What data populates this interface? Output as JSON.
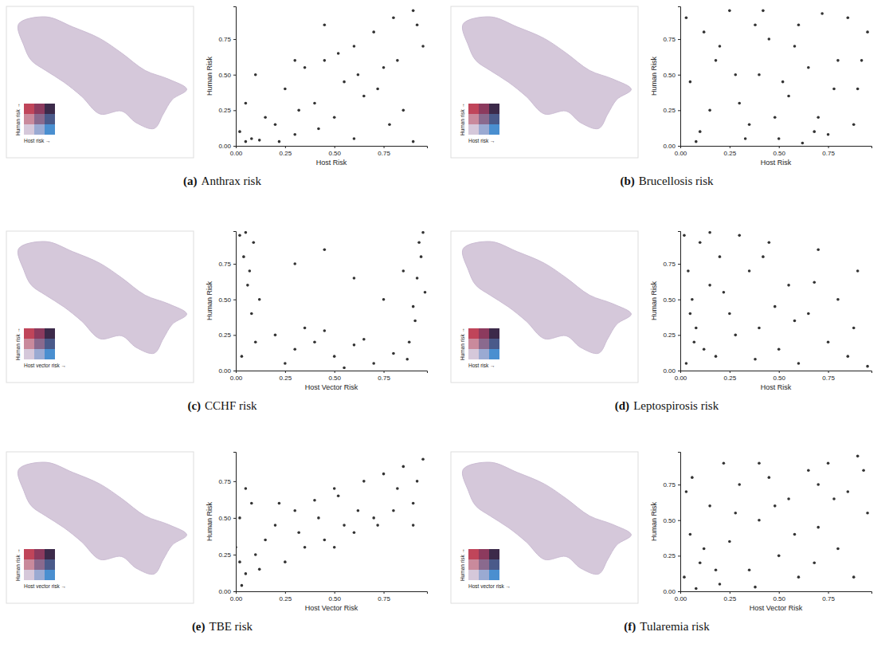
{
  "chart_data": [
    {
      "type": "scatter",
      "label": "(a)",
      "title": "Anthrax risk",
      "x_label": "Host Risk",
      "y_label": "Human Risk",
      "color": "#333333",
      "marker": "circle",
      "map_legend": {
        "x_label": "Host risk →",
        "y_label": "Human risk →",
        "colors": [
          [
            "#c0455a",
            "#8c3a5e",
            "#3c2a4a"
          ],
          [
            "#c98a9c",
            "#8a6a8e",
            "#4a5a8a"
          ],
          [
            "#d5c8da",
            "#9aaad2",
            "#4a8fd0"
          ]
        ]
      },
      "xlim": [
        0,
        0.97
      ],
      "ylim": [
        0,
        0.98
      ],
      "xticks": [
        {
          "value": 0,
          "label": "0.00"
        },
        {
          "value": 0.25,
          "label": "0.25"
        },
        {
          "value": 0.5,
          "label": "0.50"
        },
        {
          "value": 0.75,
          "label": "0.75"
        }
      ],
      "yticks": [
        {
          "value": 0,
          "label": "0.00"
        },
        {
          "value": 0.25,
          "label": "0.25"
        },
        {
          "value": 0.5,
          "label": "0.50"
        },
        {
          "value": 0.75,
          "label": "0.75"
        }
      ],
      "x": [
        0.02,
        0.05,
        0.08,
        0.1,
        0.15,
        0.2,
        0.25,
        0.3,
        0.35,
        0.4,
        0.45,
        0.5,
        0.55,
        0.6,
        0.65,
        0.7,
        0.75,
        0.8,
        0.85,
        0.9,
        0.95,
        0.12,
        0.22,
        0.32,
        0.42,
        0.52,
        0.62,
        0.72,
        0.82,
        0.92,
        0.05,
        0.3,
        0.6,
        0.9,
        0.45,
        0.78
      ],
      "values": [
        0.1,
        0.3,
        0.05,
        0.5,
        0.2,
        0.15,
        0.4,
        0.08,
        0.55,
        0.3,
        0.6,
        0.2,
        0.45,
        0.7,
        0.35,
        0.8,
        0.55,
        0.9,
        0.25,
        0.95,
        0.7,
        0.04,
        0.03,
        0.25,
        0.12,
        0.65,
        0.5,
        0.4,
        0.6,
        0.85,
        0.03,
        0.6,
        0.05,
        0.03,
        0.85,
        0.15
      ]
    },
    {
      "type": "scatter",
      "label": "(b)",
      "title": "Brucellosis risk",
      "x_label": "Host Risk",
      "y_label": "Human Risk",
      "color": "#333333",
      "marker": "circle",
      "map_legend": {
        "x_label": "Host risk →",
        "y_label": "Human risk →",
        "colors": [
          [
            "#c0455a",
            "#8c3a5e",
            "#3c2a4a"
          ],
          [
            "#c98a9c",
            "#8a6a8e",
            "#4a5a8a"
          ],
          [
            "#d5c8da",
            "#9aaad2",
            "#4a8fd0"
          ]
        ]
      },
      "xlim": [
        0,
        0.97
      ],
      "ylim": [
        0,
        0.98
      ],
      "xticks": [
        {
          "value": 0,
          "label": "0.00"
        },
        {
          "value": 0.25,
          "label": "0.25"
        },
        {
          "value": 0.5,
          "label": "0.50"
        },
        {
          "value": 0.75,
          "label": "0.75"
        }
      ],
      "yticks": [
        {
          "value": 0,
          "label": "0.00"
        },
        {
          "value": 0.25,
          "label": "0.25"
        },
        {
          "value": 0.5,
          "label": "0.50"
        },
        {
          "value": 0.75,
          "label": "0.75"
        }
      ],
      "x": [
        0.03,
        0.1,
        0.2,
        0.3,
        0.4,
        0.5,
        0.6,
        0.7,
        0.8,
        0.9,
        0.95,
        0.05,
        0.15,
        0.25,
        0.35,
        0.45,
        0.55,
        0.65,
        0.75,
        0.85,
        0.08,
        0.18,
        0.28,
        0.38,
        0.48,
        0.58,
        0.68,
        0.78,
        0.88,
        0.12,
        0.42,
        0.62,
        0.92,
        0.33,
        0.72,
        0.52
      ],
      "values": [
        0.9,
        0.1,
        0.7,
        0.3,
        0.5,
        0.05,
        0.85,
        0.2,
        0.6,
        0.4,
        0.8,
        0.45,
        0.25,
        0.95,
        0.15,
        0.75,
        0.35,
        0.55,
        0.08,
        0.9,
        0.03,
        0.6,
        0.5,
        0.85,
        0.2,
        0.7,
        0.1,
        0.4,
        0.15,
        0.8,
        0.95,
        0.02,
        0.6,
        0.05,
        0.93,
        0.45
      ]
    },
    {
      "type": "scatter",
      "label": "(c)",
      "title": "CCHF risk",
      "x_label": "Host Vector Risk",
      "y_label": "Human Risk",
      "color": "#333333",
      "marker": "circle",
      "map_legend": {
        "x_label": "Host vector risk →",
        "y_label": "Human risk →",
        "colors": [
          [
            "#c0455a",
            "#8c3a5e",
            "#3c2a4a"
          ],
          [
            "#c98a9c",
            "#8a6a8e",
            "#4a5a8a"
          ],
          [
            "#d5c8da",
            "#9aaad2",
            "#4a8fd0"
          ]
        ]
      },
      "xlim": [
        0,
        0.97
      ],
      "ylim": [
        0,
        0.98
      ],
      "xticks": [
        {
          "value": 0,
          "label": "0.00"
        },
        {
          "value": 0.25,
          "label": "0.25"
        },
        {
          "value": 0.5,
          "label": "0.50"
        },
        {
          "value": 0.75,
          "label": "0.75"
        }
      ],
      "yticks": [
        {
          "value": 0,
          "label": "0.00"
        },
        {
          "value": 0.25,
          "label": "0.25"
        },
        {
          "value": 0.5,
          "label": "0.50"
        },
        {
          "value": 0.75,
          "label": "0.75"
        }
      ],
      "x": [
        0.02,
        0.04,
        0.06,
        0.08,
        0.1,
        0.05,
        0.07,
        0.12,
        0.03,
        0.09,
        0.2,
        0.3,
        0.4,
        0.5,
        0.6,
        0.7,
        0.8,
        0.25,
        0.45,
        0.65,
        0.35,
        0.55,
        0.88,
        0.9,
        0.92,
        0.94,
        0.95,
        0.91,
        0.93,
        0.87,
        0.96,
        0.3,
        0.6,
        0.75,
        0.45,
        0.85
      ],
      "values": [
        0.95,
        0.8,
        0.6,
        0.4,
        0.2,
        0.97,
        0.7,
        0.5,
        0.1,
        0.9,
        0.25,
        0.15,
        0.2,
        0.1,
        0.18,
        0.05,
        0.12,
        0.05,
        0.28,
        0.22,
        0.3,
        0.02,
        0.2,
        0.45,
        0.65,
        0.8,
        0.97,
        0.35,
        0.9,
        0.08,
        0.55,
        0.75,
        0.65,
        0.5,
        0.85,
        0.7
      ]
    },
    {
      "type": "scatter",
      "label": "(d)",
      "title": "Leptospirosis risk",
      "x_label": "Host Risk",
      "y_label": "Human Risk",
      "color": "#333333",
      "marker": "circle",
      "map_legend": {
        "x_label": "Host risk →",
        "y_label": "Human risk →",
        "colors": [
          [
            "#c0455a",
            "#8c3a5e",
            "#3c2a4a"
          ],
          [
            "#c98a9c",
            "#8a6a8e",
            "#4a5a8a"
          ],
          [
            "#d5c8da",
            "#9aaad2",
            "#4a8fd0"
          ]
        ]
      },
      "xlim": [
        0,
        0.97
      ],
      "ylim": [
        0,
        0.98
      ],
      "xticks": [
        {
          "value": 0,
          "label": "0.00"
        },
        {
          "value": 0.25,
          "label": "0.25"
        },
        {
          "value": 0.5,
          "label": "0.50"
        },
        {
          "value": 0.75,
          "label": "0.75"
        }
      ],
      "yticks": [
        {
          "value": 0,
          "label": "0.00"
        },
        {
          "value": 0.25,
          "label": "0.25"
        },
        {
          "value": 0.5,
          "label": "0.50"
        },
        {
          "value": 0.75,
          "label": "0.75"
        }
      ],
      "x": [
        0.02,
        0.04,
        0.06,
        0.08,
        0.1,
        0.12,
        0.15,
        0.2,
        0.25,
        0.3,
        0.03,
        0.07,
        0.18,
        0.35,
        0.4,
        0.45,
        0.5,
        0.55,
        0.6,
        0.65,
        0.7,
        0.75,
        0.8,
        0.85,
        0.9,
        0.95,
        0.22,
        0.28,
        0.38,
        0.48,
        0.58,
        0.68,
        0.05,
        0.15,
        0.42,
        0.88
      ],
      "values": [
        0.95,
        0.7,
        0.5,
        0.3,
        0.9,
        0.15,
        0.6,
        0.8,
        0.4,
        0.95,
        0.05,
        0.2,
        0.1,
        0.7,
        0.3,
        0.9,
        0.15,
        0.6,
        0.05,
        0.4,
        0.85,
        0.2,
        0.5,
        0.1,
        0.7,
        0.03,
        0.55,
        0.25,
        0.08,
        0.45,
        0.35,
        0.62,
        0.4,
        0.97,
        0.8,
        0.3
      ]
    },
    {
      "type": "scatter",
      "label": "(e)",
      "title": "TBE risk",
      "x_label": "Host Vector Risk",
      "y_label": "Human Risk",
      "color": "#333333",
      "marker": "circle",
      "map_legend": {
        "x_label": "Host vector risk →",
        "y_label": "Human risk →",
        "colors": [
          [
            "#c0455a",
            "#8c3a5e",
            "#3c2a4a"
          ],
          [
            "#c98a9c",
            "#8a6a8e",
            "#4a5a8a"
          ],
          [
            "#d5c8da",
            "#9aaad2",
            "#4a8fd0"
          ]
        ]
      },
      "xlim": [
        0,
        0.97
      ],
      "ylim": [
        0,
        0.95
      ],
      "xticks": [
        {
          "value": 0,
          "label": "0.00"
        },
        {
          "value": 0.25,
          "label": "0.25"
        },
        {
          "value": 0.5,
          "label": "0.50"
        },
        {
          "value": 0.75,
          "label": "0.75"
        }
      ],
      "yticks": [
        {
          "value": 0,
          "label": "0.00"
        },
        {
          "value": 0.25,
          "label": "0.25"
        },
        {
          "value": 0.5,
          "label": "0.50"
        },
        {
          "value": 0.75,
          "label": "0.75"
        }
      ],
      "x": [
        0.0,
        0.02,
        0.05,
        0.08,
        0.1,
        0.15,
        0.2,
        0.25,
        0.3,
        0.35,
        0.4,
        0.45,
        0.5,
        0.55,
        0.6,
        0.65,
        0.7,
        0.75,
        0.8,
        0.85,
        0.9,
        0.95,
        0.03,
        0.12,
        0.22,
        0.32,
        0.42,
        0.52,
        0.62,
        0.72,
        0.82,
        0.92,
        0.05,
        0.5,
        0.9,
        0.02
      ],
      "values": [
        0.3,
        0.5,
        0.12,
        0.6,
        0.25,
        0.35,
        0.45,
        0.2,
        0.55,
        0.3,
        0.62,
        0.35,
        0.7,
        0.45,
        0.4,
        0.75,
        0.5,
        0.8,
        0.55,
        0.85,
        0.6,
        0.9,
        0.04,
        0.15,
        0.6,
        0.4,
        0.5,
        0.65,
        0.55,
        0.45,
        0.7,
        0.75,
        0.7,
        0.3,
        0.45,
        0.2
      ]
    },
    {
      "type": "scatter",
      "label": "(f)",
      "title": "Tularemia risk",
      "x_label": "Host Vector Risk",
      "y_label": "Human Risk",
      "color": "#333333",
      "marker": "circle",
      "map_legend": {
        "x_label": "Host vector risk →",
        "y_label": "Human risk →",
        "colors": [
          [
            "#c0455a",
            "#8c3a5e",
            "#3c2a4a"
          ],
          [
            "#c98a9c",
            "#8a6a8e",
            "#4a5a8a"
          ],
          [
            "#d5c8da",
            "#9aaad2",
            "#4a8fd0"
          ]
        ]
      },
      "xlim": [
        0,
        0.97
      ],
      "ylim": [
        0,
        0.98
      ],
      "xticks": [
        {
          "value": 0,
          "label": "0.00"
        },
        {
          "value": 0.25,
          "label": "0.25"
        },
        {
          "value": 0.5,
          "label": "0.50"
        },
        {
          "value": 0.75,
          "label": "0.75"
        }
      ],
      "yticks": [
        {
          "value": 0,
          "label": "0.00"
        },
        {
          "value": 0.25,
          "label": "0.25"
        },
        {
          "value": 0.5,
          "label": "0.50"
        },
        {
          "value": 0.75,
          "label": "0.75"
        }
      ],
      "x": [
        0.02,
        0.05,
        0.1,
        0.15,
        0.2,
        0.25,
        0.3,
        0.35,
        0.4,
        0.45,
        0.5,
        0.55,
        0.6,
        0.65,
        0.7,
        0.75,
        0.8,
        0.85,
        0.9,
        0.95,
        0.03,
        0.08,
        0.12,
        0.18,
        0.28,
        0.38,
        0.48,
        0.58,
        0.68,
        0.78,
        0.88,
        0.93,
        0.06,
        0.4,
        0.7,
        0.22
      ],
      "values": [
        0.1,
        0.4,
        0.2,
        0.6,
        0.05,
        0.35,
        0.75,
        0.15,
        0.5,
        0.8,
        0.25,
        0.65,
        0.1,
        0.85,
        0.45,
        0.9,
        0.3,
        0.7,
        0.95,
        0.55,
        0.7,
        0.02,
        0.3,
        0.15,
        0.55,
        0.03,
        0.6,
        0.4,
        0.2,
        0.65,
        0.1,
        0.85,
        0.8,
        0.9,
        0.75,
        0.9
      ]
    }
  ]
}
